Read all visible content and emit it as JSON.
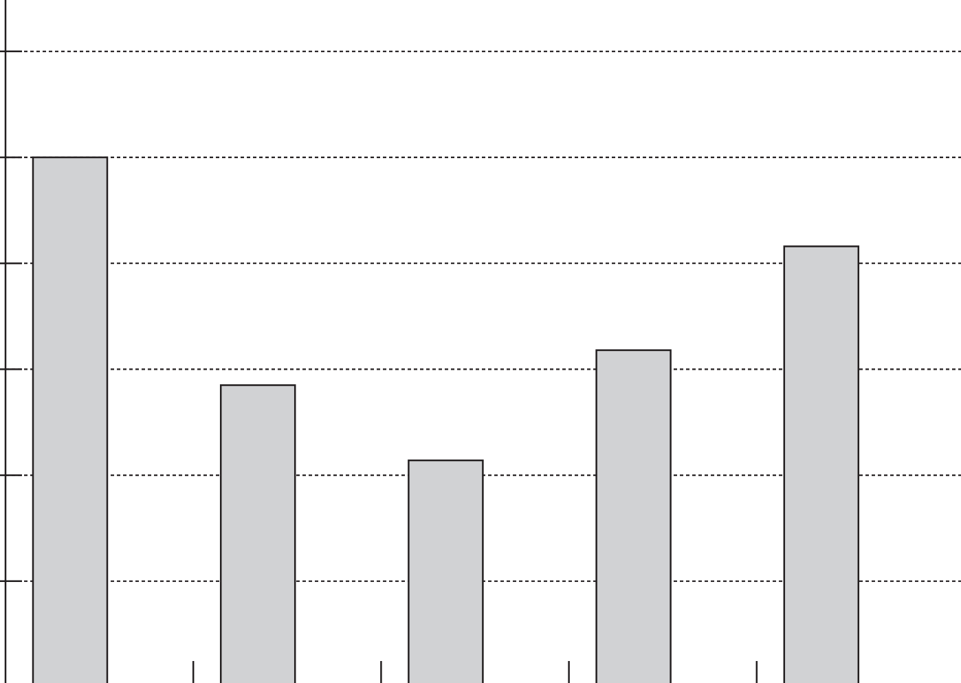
{
  "chart_data": {
    "type": "bar",
    "categories": [
      "",
      "",
      "",
      "",
      ""
    ],
    "values": [
      5.0,
      2.85,
      2.14,
      3.18,
      4.16
    ],
    "ylim": [
      0,
      6.45
    ],
    "yticks": [
      1,
      2,
      3,
      4,
      5,
      6
    ],
    "grid": true,
    "grid_style": "dashed horizontal",
    "bar_color": "#d1d2d4",
    "edge_color": "#231f20",
    "title": "",
    "xlabel": "",
    "ylabel": ""
  }
}
